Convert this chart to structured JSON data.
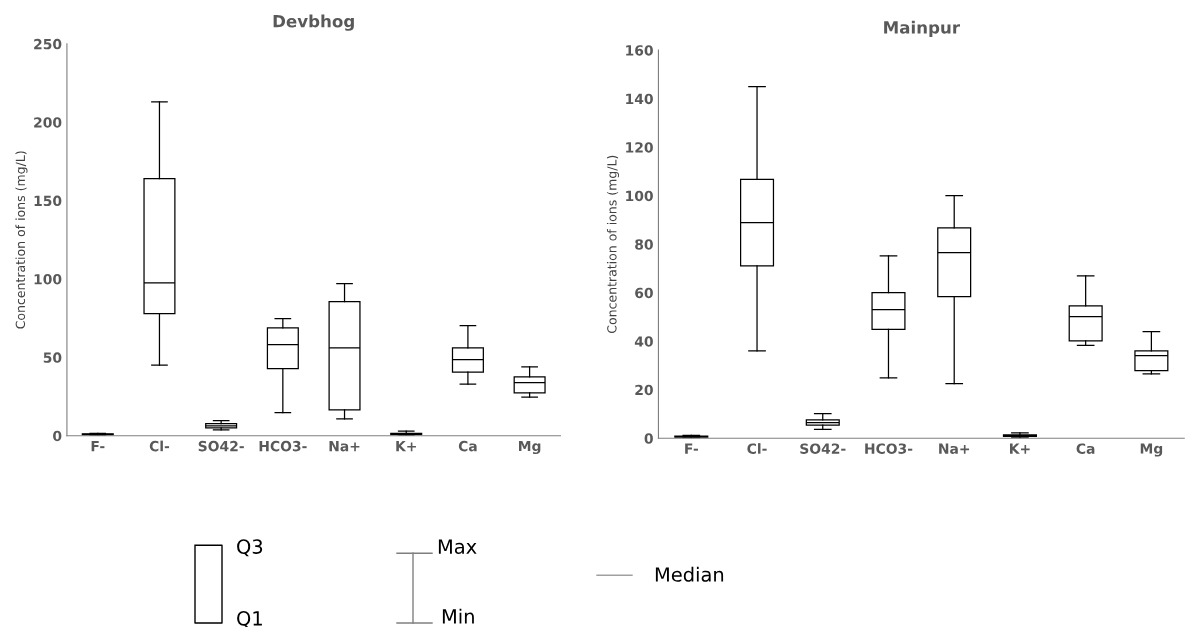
{
  "chart_data": [
    {
      "type": "box",
      "title": "Devbhog",
      "ylabel": "Concentration of ions (mg/L)",
      "categories": [
        "F-",
        "Cl-",
        "SO42-",
        "HCO3-",
        "Na+",
        "K+",
        "Ca",
        "Mg"
      ],
      "ylim": [
        0,
        250
      ],
      "yticks": [
        0,
        50,
        100,
        150,
        200,
        250
      ],
      "boxes": [
        {
          "low": 0.3,
          "q1": 0.6,
          "median": 0.9,
          "q3": 1.2,
          "high": 1.5
        },
        {
          "low": 45,
          "q1": 78,
          "median": 97.6,
          "q3": 164,
          "high": 213
        },
        {
          "low": 3.7,
          "q1": 5.1,
          "median": 6.3,
          "q3": 7.7,
          "high": 9.7
        },
        {
          "low": 14.8,
          "q1": 42.9,
          "median": 58.2,
          "q3": 68.9,
          "high": 74.7
        },
        {
          "low": 10.7,
          "q1": 16.5,
          "median": 56,
          "q3": 85.6,
          "high": 97
        },
        {
          "low": 0.2,
          "q1": 0.7,
          "median": 1.2,
          "q3": 1.6,
          "high": 3
        },
        {
          "low": 33,
          "q1": 40.6,
          "median": 48.5,
          "q3": 56,
          "high": 70.3
        },
        {
          "low": 24.6,
          "q1": 27.4,
          "median": 33.9,
          "q3": 37.6,
          "high": 44
        }
      ]
    },
    {
      "type": "box",
      "title": "Mainpur",
      "ylabel": "Concentration of ions (mg/L)",
      "categories": [
        "F-",
        "Cl-",
        "SO42-",
        "HCO3-",
        "Na+",
        "K+",
        "Ca",
        "Mg"
      ],
      "ylim": [
        0,
        160
      ],
      "yticks": [
        0,
        20,
        40,
        60,
        80,
        100,
        120,
        140,
        160
      ],
      "boxes": [
        {
          "low": 0.2,
          "q1": 0.5,
          "median": 0.7,
          "q3": 0.9,
          "high": 1.2
        },
        {
          "low": 36,
          "q1": 71.1,
          "median": 88.9,
          "q3": 106.7,
          "high": 145
        },
        {
          "low": 3.7,
          "q1": 5.4,
          "median": 6.5,
          "q3": 7.6,
          "high": 10.2
        },
        {
          "low": 24.9,
          "q1": 44.9,
          "median": 53,
          "q3": 60,
          "high": 75.2
        },
        {
          "low": 22.5,
          "q1": 58.4,
          "median": 76.5,
          "q3": 86.7,
          "high": 100
        },
        {
          "low": 0.2,
          "q1": 0.8,
          "median": 1.1,
          "q3": 1.4,
          "high": 2.2
        },
        {
          "low": 38.3,
          "q1": 40.2,
          "median": 50.2,
          "q3": 54.6,
          "high": 67
        },
        {
          "low": 26.5,
          "q1": 27.9,
          "median": 34.1,
          "q3": 36,
          "high": 44
        }
      ]
    },
    {
      "type": "other",
      "annotations": [
        "Q3",
        "Q1",
        "Max",
        "Min",
        "Median"
      ]
    }
  ]
}
